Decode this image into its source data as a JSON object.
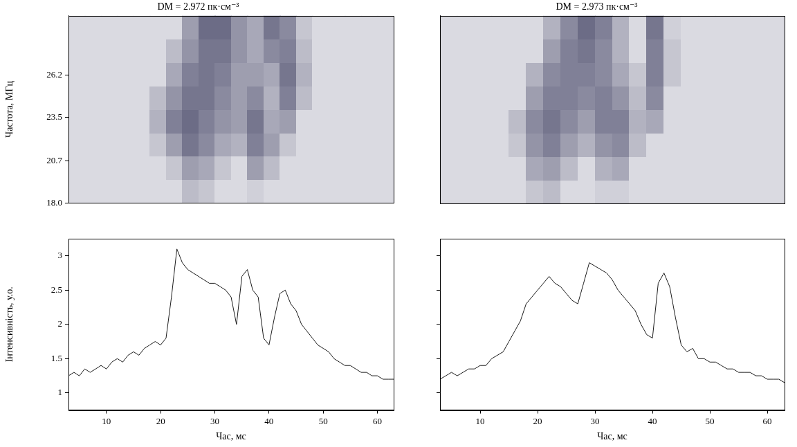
{
  "chart_data": [
    {
      "type": "heatmap",
      "title": "DM = 2.972 пк·см⁻³",
      "ylabel": "Частота, МГц",
      "xlim": [
        3,
        63
      ],
      "ylim": [
        18,
        30
      ],
      "yticks": [
        {
          "value": 18,
          "label": "18.0"
        },
        20.7,
        23.5,
        26.2
      ],
      "tick_labels": "y",
      "grid": false,
      "zlim": [
        0,
        1
      ],
      "x_edges": [
        3,
        6,
        9,
        12,
        15,
        18,
        21,
        24,
        27,
        30,
        33,
        36,
        39,
        42,
        45,
        48,
        51,
        54,
        57,
        60,
        63
      ],
      "y_edges": [
        18,
        19.5,
        21,
        22.5,
        24,
        25.5,
        27,
        28.5,
        30
      ],
      "cells": [
        [
          0.05,
          0.05,
          0.05,
          0.05,
          0.05,
          0.05,
          0.05,
          0.2,
          0.15,
          0.05,
          0.05,
          0.1,
          0.05,
          0.05,
          0.05,
          0.05,
          0.05,
          0.05,
          0.05,
          0.05
        ],
        [
          0.05,
          0.05,
          0.05,
          0.05,
          0.05,
          0.05,
          0.15,
          0.35,
          0.3,
          0.15,
          0.05,
          0.35,
          0.2,
          0.05,
          0.05,
          0.05,
          0.05,
          0.05,
          0.05,
          0.05
        ],
        [
          0.05,
          0.05,
          0.05,
          0.05,
          0.05,
          0.15,
          0.35,
          0.55,
          0.45,
          0.3,
          0.25,
          0.5,
          0.35,
          0.15,
          0.05,
          0.05,
          0.05,
          0.05,
          0.05,
          0.05
        ],
        [
          0.05,
          0.05,
          0.05,
          0.05,
          0.05,
          0.25,
          0.5,
          0.6,
          0.5,
          0.4,
          0.35,
          0.55,
          0.3,
          0.35,
          0.05,
          0.05,
          0.05,
          0.05,
          0.05,
          0.05
        ],
        [
          0.05,
          0.05,
          0.05,
          0.05,
          0.05,
          0.2,
          0.4,
          0.55,
          0.55,
          0.45,
          0.35,
          0.45,
          0.25,
          0.5,
          0.2,
          0.05,
          0.05,
          0.05,
          0.05,
          0.05
        ],
        [
          0.05,
          0.05,
          0.05,
          0.05,
          0.05,
          0.05,
          0.3,
          0.5,
          0.55,
          0.5,
          0.35,
          0.35,
          0.3,
          0.55,
          0.25,
          0.05,
          0.05,
          0.05,
          0.05,
          0.05
        ],
        [
          0.05,
          0.05,
          0.05,
          0.05,
          0.05,
          0.05,
          0.2,
          0.4,
          0.55,
          0.55,
          0.4,
          0.3,
          0.45,
          0.5,
          0.2,
          0.05,
          0.05,
          0.05,
          0.05,
          0.05
        ],
        [
          0.05,
          0.05,
          0.05,
          0.05,
          0.05,
          0.05,
          0.05,
          0.35,
          0.6,
          0.6,
          0.4,
          0.3,
          0.55,
          0.45,
          0.15,
          0.05,
          0.05,
          0.05,
          0.05,
          0.05
        ]
      ]
    },
    {
      "type": "heatmap",
      "title": "DM = 2.973 пк·см⁻³",
      "xlim": [
        3,
        63
      ],
      "ylim": [
        18,
        30
      ],
      "tick_labels": false,
      "grid": false,
      "zlim": [
        0,
        1
      ],
      "x_edges": [
        3,
        6,
        9,
        12,
        15,
        18,
        21,
        24,
        27,
        30,
        33,
        36,
        39,
        42,
        45,
        48,
        51,
        54,
        57,
        60,
        63
      ],
      "y_edges": [
        18,
        19.5,
        21,
        22.5,
        24,
        25.5,
        27,
        28.5,
        30
      ],
      "cells": [
        [
          0.05,
          0.05,
          0.05,
          0.05,
          0.05,
          0.15,
          0.2,
          0.05,
          0.05,
          0.1,
          0.1,
          0.05,
          0.05,
          0.05,
          0.05,
          0.05,
          0.05,
          0.05,
          0.05,
          0.05
        ],
        [
          0.05,
          0.05,
          0.05,
          0.05,
          0.05,
          0.3,
          0.35,
          0.2,
          0.05,
          0.25,
          0.3,
          0.05,
          0.05,
          0.05,
          0.05,
          0.05,
          0.05,
          0.05,
          0.05,
          0.05
        ],
        [
          0.05,
          0.05,
          0.05,
          0.05,
          0.15,
          0.4,
          0.5,
          0.35,
          0.25,
          0.4,
          0.45,
          0.2,
          0.05,
          0.05,
          0.05,
          0.05,
          0.05,
          0.05,
          0.05,
          0.05
        ],
        [
          0.05,
          0.05,
          0.05,
          0.05,
          0.2,
          0.45,
          0.55,
          0.45,
          0.35,
          0.5,
          0.5,
          0.25,
          0.3,
          0.05,
          0.05,
          0.05,
          0.05,
          0.05,
          0.05,
          0.05
        ],
        [
          0.05,
          0.05,
          0.05,
          0.05,
          0.05,
          0.35,
          0.5,
          0.5,
          0.45,
          0.5,
          0.4,
          0.2,
          0.45,
          0.05,
          0.05,
          0.05,
          0.05,
          0.05,
          0.05,
          0.05
        ],
        [
          0.05,
          0.05,
          0.05,
          0.05,
          0.05,
          0.25,
          0.45,
          0.5,
          0.5,
          0.45,
          0.3,
          0.15,
          0.5,
          0.15,
          0.05,
          0.05,
          0.05,
          0.05,
          0.05,
          0.05
        ],
        [
          0.05,
          0.05,
          0.05,
          0.05,
          0.05,
          0.05,
          0.35,
          0.5,
          0.55,
          0.45,
          0.25,
          0.05,
          0.5,
          0.15,
          0.05,
          0.05,
          0.05,
          0.05,
          0.05,
          0.05
        ],
        [
          0.05,
          0.05,
          0.05,
          0.05,
          0.05,
          0.05,
          0.25,
          0.45,
          0.6,
          0.5,
          0.25,
          0.05,
          0.55,
          0.1,
          0.05,
          0.05,
          0.05,
          0.05,
          0.05,
          0.05
        ]
      ]
    },
    {
      "type": "line",
      "xlabel": "Час, мс",
      "ylabel": "Інтенсивність, у.о.",
      "xlim": [
        3,
        63
      ],
      "ylim": [
        0.75,
        3.25
      ],
      "xticks": [
        10,
        20,
        30,
        40,
        50,
        60
      ],
      "yticks": [
        1,
        1.5,
        2,
        2.5,
        3
      ],
      "grid": false,
      "color": "#1a1a1a",
      "x": [
        3,
        4,
        5,
        6,
        7,
        8,
        9,
        10,
        11,
        12,
        13,
        14,
        15,
        16,
        17,
        18,
        19,
        20,
        21,
        22,
        23,
        24,
        25,
        26,
        27,
        28,
        29,
        30,
        31,
        32,
        33,
        34,
        35,
        36,
        37,
        38,
        39,
        40,
        41,
        42,
        43,
        44,
        45,
        46,
        47,
        48,
        49,
        50,
        51,
        52,
        53,
        54,
        55,
        56,
        57,
        58,
        59,
        60,
        61,
        62,
        63
      ],
      "values": [
        1.25,
        1.3,
        1.25,
        1.35,
        1.3,
        1.35,
        1.4,
        1.35,
        1.45,
        1.5,
        1.45,
        1.55,
        1.6,
        1.55,
        1.65,
        1.7,
        1.75,
        1.7,
        1.8,
        2.4,
        3.1,
        2.9,
        2.8,
        2.75,
        2.7,
        2.65,
        2.6,
        2.6,
        2.55,
        2.5,
        2.4,
        2.0,
        2.7,
        2.8,
        2.5,
        2.4,
        1.8,
        1.7,
        2.1,
        2.45,
        2.5,
        2.3,
        2.2,
        2.0,
        1.9,
        1.8,
        1.7,
        1.65,
        1.6,
        1.5,
        1.45,
        1.4,
        1.4,
        1.35,
        1.3,
        1.3,
        1.25,
        1.25,
        1.2,
        1.2,
        1.2
      ]
    },
    {
      "type": "line",
      "xlabel": "Час, мс",
      "xlim": [
        3,
        63
      ],
      "ylim": [
        0.75,
        3.25
      ],
      "xticks": [
        10,
        20,
        30,
        40,
        50,
        60
      ],
      "yticks": [
        1,
        1.5,
        2,
        2.5,
        3
      ],
      "tick_labels": "x",
      "grid": false,
      "color": "#1a1a1a",
      "x": [
        3,
        4,
        5,
        6,
        7,
        8,
        9,
        10,
        11,
        12,
        13,
        14,
        15,
        16,
        17,
        18,
        19,
        20,
        21,
        22,
        23,
        24,
        25,
        26,
        27,
        28,
        29,
        30,
        31,
        32,
        33,
        34,
        35,
        36,
        37,
        38,
        39,
        40,
        41,
        42,
        43,
        44,
        45,
        46,
        47,
        48,
        49,
        50,
        51,
        52,
        53,
        54,
        55,
        56,
        57,
        58,
        59,
        60,
        61,
        62,
        63
      ],
      "values": [
        1.2,
        1.25,
        1.3,
        1.25,
        1.3,
        1.35,
        1.35,
        1.4,
        1.4,
        1.5,
        1.55,
        1.6,
        1.75,
        1.9,
        2.05,
        2.3,
        2.4,
        2.5,
        2.6,
        2.7,
        2.6,
        2.55,
        2.45,
        2.35,
        2.3,
        2.6,
        2.9,
        2.85,
        2.8,
        2.75,
        2.65,
        2.5,
        2.4,
        2.3,
        2.2,
        2.0,
        1.85,
        1.8,
        2.6,
        2.75,
        2.55,
        2.1,
        1.7,
        1.6,
        1.65,
        1.5,
        1.5,
        1.45,
        1.45,
        1.4,
        1.35,
        1.35,
        1.3,
        1.3,
        1.3,
        1.25,
        1.25,
        1.2,
        1.2,
        1.2,
        1.15
      ]
    }
  ]
}
